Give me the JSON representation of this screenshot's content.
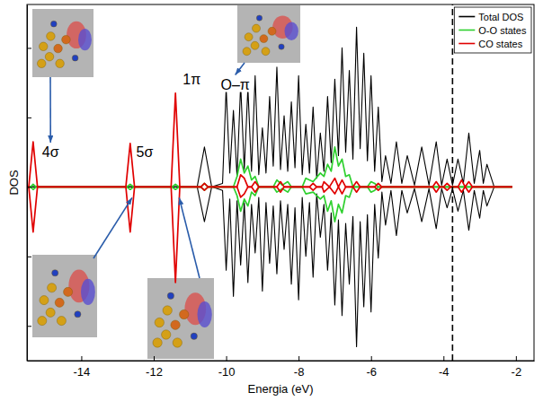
{
  "chart_data": {
    "type": "line",
    "x_label": "Energia (eV)",
    "y_label": "DOS",
    "xlim": [
      -15.5,
      -1.5
    ],
    "ylim": [
      -10,
      10.5
    ],
    "xticks": [
      -14,
      -12,
      -10,
      -8,
      -6,
      -4,
      -2
    ],
    "yticks": [
      -8,
      -4,
      0,
      4,
      8
    ],
    "tick_labels": "x",
    "legend": "top-right",
    "reference_line_x": -3.75,
    "series": [
      {
        "name": "Total DOS",
        "color": "#000000",
        "x": [
          -15.5,
          -10.8,
          -10.6,
          -10.4,
          -10.1,
          -10.0,
          -9.9,
          -9.8,
          -9.7,
          -9.6,
          -9.5,
          -9.4,
          -9.3,
          -9.2,
          -9.1,
          -9.0,
          -8.9,
          -8.8,
          -8.7,
          -8.6,
          -8.5,
          -8.4,
          -8.3,
          -8.2,
          -8.1,
          -8.0,
          -7.9,
          -7.8,
          -7.7,
          -7.6,
          -7.5,
          -7.4,
          -7.3,
          -7.2,
          -7.1,
          -7.0,
          -6.9,
          -6.8,
          -6.7,
          -6.6,
          -6.5,
          -6.4,
          -6.3,
          -6.2,
          -6.1,
          -6.0,
          -5.9,
          -5.8,
          -5.7,
          -5.6,
          -5.45,
          -5.3,
          -5.15,
          -5.0,
          -4.8,
          -4.6,
          -4.4,
          -4.2,
          -4.05,
          -3.9,
          -3.75,
          -3.6,
          -3.45,
          -3.3,
          -3.15,
          -3.0,
          -2.9,
          -2.8,
          -2.6,
          -2.1
        ],
        "values": [
          0,
          0,
          2.3,
          0,
          0.2,
          5.7,
          0.8,
          4.4,
          0.6,
          5.9,
          1.0,
          5.7,
          0.9,
          6.4,
          0.7,
          3.4,
          0.8,
          5.2,
          1.2,
          6.9,
          1.0,
          4.1,
          0.9,
          4.9,
          1.1,
          6.4,
          0.7,
          3.6,
          0.8,
          4.6,
          0.5,
          3.1,
          0.9,
          5.2,
          1.4,
          6.2,
          1.8,
          8.0,
          2.0,
          6.7,
          1.6,
          9.2,
          2.2,
          7.7,
          1.5,
          6.4,
          0.9,
          4.6,
          0.3,
          1.8,
          0.2,
          2.6,
          0.2,
          1.8,
          0.1,
          2.3,
          0.1,
          2.6,
          0.1,
          1.6,
          0.1,
          1.6,
          0.2,
          3.1,
          0.2,
          2.1,
          0.2,
          1.3,
          0,
          0
        ],
        "values_down": [
          0,
          0,
          -2.0,
          0,
          -0.2,
          -4.8,
          -0.7,
          -6.3,
          -0.8,
          -4.5,
          -0.9,
          -5.5,
          -1.0,
          -3.8,
          -0.6,
          -6.0,
          -0.9,
          -4.4,
          -1.1,
          -5.0,
          -0.8,
          -3.6,
          -1.0,
          -5.6,
          -1.2,
          -6.5,
          -0.6,
          -4.0,
          -0.9,
          -5.2,
          -0.4,
          -2.9,
          -1.0,
          -4.8,
          -1.5,
          -6.8,
          -1.9,
          -7.4,
          -2.1,
          -5.6,
          -1.7,
          -9.2,
          -2.0,
          -6.9,
          -1.6,
          -7.2,
          -1.0,
          -4.1,
          -0.3,
          -2.2,
          -0.2,
          -2.8,
          -0.2,
          -1.5,
          -0.1,
          -2.0,
          -0.1,
          -2.4,
          -0.1,
          -1.2,
          -0.1,
          -1.4,
          -0.2,
          -2.5,
          -0.2,
          -1.8,
          -0.2,
          -1.1,
          0,
          0
        ]
      },
      {
        "name": "O-O states",
        "color": "#2ed02e",
        "x": [
          -15.5,
          -15.4,
          -15.33,
          -15.25,
          -12.75,
          -12.65,
          -12.55,
          -11.5,
          -11.4,
          -11.3,
          -10.7,
          -10.6,
          -10.5,
          -9.8,
          -9.7,
          -9.6,
          -9.5,
          -9.4,
          -9.3,
          -9.2,
          -9.1,
          -8.7,
          -8.6,
          -8.45,
          -8.3,
          -8.2,
          -7.9,
          -7.8,
          -7.6,
          -7.4,
          -7.3,
          -7.2,
          -7.1,
          -7.0,
          -6.9,
          -6.8,
          -6.7,
          -6.6,
          -6.5,
          -6.1,
          -6.0,
          -5.9,
          -5.8,
          -2.1
        ],
        "values": [
          0,
          0,
          0.15,
          0,
          0,
          0.15,
          0,
          0,
          0.15,
          0,
          0,
          0.2,
          0,
          0,
          0.6,
          1.6,
          0.8,
          1.2,
          0.4,
          0.6,
          0,
          0,
          0.4,
          0.1,
          0.3,
          0,
          0,
          0.5,
          0.3,
          0.8,
          0.6,
          1.3,
          0.9,
          2.3,
          1.2,
          1.6,
          0.6,
          0.7,
          0,
          0,
          0.3,
          0.2,
          0,
          0
        ],
        "values_down": [
          0,
          0,
          -0.15,
          0,
          0,
          -0.15,
          0,
          0,
          -0.15,
          0,
          0,
          -0.2,
          0,
          0,
          -0.5,
          -1.4,
          -0.7,
          -1.1,
          -0.3,
          -0.5,
          0,
          0,
          -0.3,
          -0.1,
          -0.3,
          0,
          0,
          -0.4,
          -0.3,
          -0.7,
          -0.5,
          -1.4,
          -0.8,
          -2.0,
          -1.0,
          -1.5,
          -0.5,
          -0.6,
          0,
          0,
          -0.3,
          -0.2,
          0,
          0
        ]
      },
      {
        "name": "CO states",
        "color": "#e00000",
        "x": [
          -15.5,
          -15.45,
          -15.33,
          -15.21,
          -12.77,
          -12.65,
          -12.53,
          -11.52,
          -11.4,
          -11.28,
          -10.7,
          -10.6,
          -10.5,
          -9.7,
          -9.6,
          -9.5,
          -9.4,
          -9.3,
          -9.2,
          -9.1,
          -8.6,
          -8.5,
          -8.4,
          -7.7,
          -7.6,
          -7.5,
          -7.35,
          -7.3,
          -7.15,
          -7.0,
          -6.9,
          -6.8,
          -6.7,
          -6.5,
          -6.4,
          -6.3,
          -5.9,
          -5.8,
          -5.7,
          -4.3,
          -4.2,
          -4.1,
          -4.0,
          -3.9,
          -3.8,
          -3.6,
          -3.5,
          -3.4,
          -3.3,
          -3.2,
          -2.1
        ],
        "values": [
          0,
          0,
          2.6,
          0,
          0,
          2.5,
          0,
          0,
          5.4,
          0,
          0,
          0.2,
          0,
          0,
          0.7,
          0.5,
          0,
          0,
          0.3,
          0,
          0,
          0.3,
          0,
          0,
          0.2,
          0,
          0,
          0.3,
          0,
          0.5,
          0,
          0.4,
          0,
          0,
          0.3,
          0,
          0,
          0.2,
          0,
          0,
          0.3,
          0,
          0,
          0.2,
          0,
          0,
          0.4,
          0,
          0.3,
          0,
          0
        ],
        "values_down": [
          0,
          0,
          -2.6,
          0,
          0,
          -2.6,
          0,
          0,
          -5.5,
          0,
          0,
          -0.2,
          0,
          0,
          -0.6,
          -0.4,
          0,
          0,
          -0.3,
          0,
          0,
          -0.3,
          0,
          0,
          -0.2,
          0,
          0,
          -0.3,
          0,
          -0.4,
          0,
          -0.4,
          0,
          0,
          -0.3,
          0,
          0,
          -0.2,
          0,
          0,
          -0.3,
          0,
          0,
          -0.2,
          0,
          0,
          -0.3,
          0,
          -0.3,
          0,
          0
        ]
      }
    ],
    "annotations": [
      {
        "text": "4σ",
        "x": -14.85,
        "y": 2.0
      },
      {
        "text": "5σ",
        "x": -12.25,
        "y": 2.0
      },
      {
        "text": "1π",
        "x": -10.95,
        "y": 6.2
      },
      {
        "text": "O–π",
        "x": -9.75,
        "y": 5.9
      }
    ]
  }
}
